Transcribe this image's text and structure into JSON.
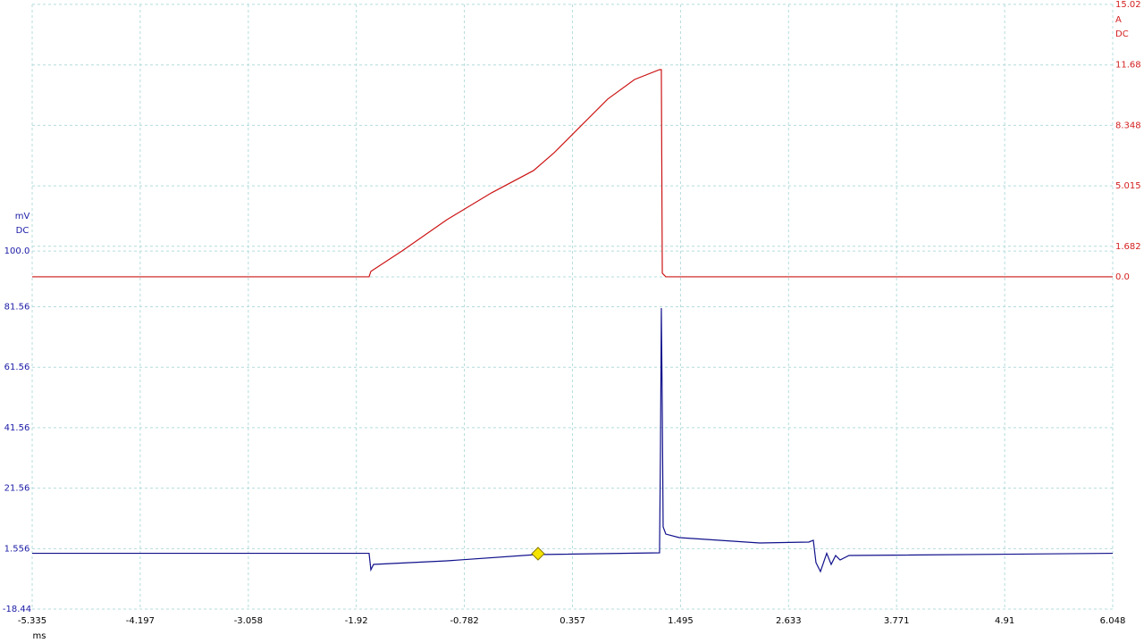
{
  "chart_data": {
    "type": "line",
    "x_label": "ms",
    "xlim": [
      -5.335,
      6.048
    ],
    "xticks": [
      -5.335,
      -4.197,
      -3.058,
      -1.92,
      -0.782,
      0.357,
      1.495,
      2.633,
      3.771,
      4.91,
      6.048
    ],
    "y_label": "mV",
    "y_coupling": "DC",
    "y_color": "#1a1aa6",
    "ylim": [
      -18.44,
      181.56
    ],
    "yticks": [
      -18.44,
      1.556,
      21.56,
      41.56,
      61.56,
      81.56,
      {
        "value": 100,
        "label": "100.0"
      }
    ],
    "y2_label": "A",
    "y2_coupling": "DC",
    "y2_color": "#d42020",
    "y2lim": [
      -18.316,
      15.014
    ],
    "y2ticks": [
      {
        "value": 0,
        "label": "0.0"
      },
      1.682,
      5.015,
      8.348,
      11.68,
      15.02
    ],
    "grid": true,
    "series": [
      {
        "color": "#cc1414",
        "axis": "y2",
        "x": [
          -5.335,
          -1.786,
          -1.767,
          -1.437,
          -0.966,
          -0.496,
          -0.053,
          0.163,
          0.446,
          0.728,
          1.011,
          1.274,
          1.293,
          1.303,
          1.34,
          6.048
        ],
        "values": [
          0,
          0,
          0.3,
          1.43,
          3.15,
          4.63,
          5.86,
          6.84,
          8.32,
          9.8,
          10.88,
          11.42,
          11.42,
          0.2,
          0,
          0
        ]
      },
      {
        "color": "#10108c",
        "axis": "y",
        "x": [
          -5.335,
          -1.786,
          -1.767,
          -1.739,
          -0.966,
          -0.025,
          1.274,
          1.284,
          1.293,
          1.303,
          1.312,
          1.34,
          1.482,
          2.329,
          2.847,
          2.894,
          2.922,
          2.969,
          3.035,
          3.082,
          3.129,
          3.176,
          3.27,
          6.048
        ],
        "values": [
          0,
          0,
          -5.44,
          -3.67,
          -2.49,
          -0.42,
          0.17,
          35.32,
          81.11,
          47.14,
          8.74,
          6.37,
          5.19,
          3.42,
          3.72,
          4.31,
          -3.08,
          -6.03,
          0,
          -3.67,
          -0.72,
          -2.19,
          -0.72,
          0
        ]
      }
    ]
  }
}
